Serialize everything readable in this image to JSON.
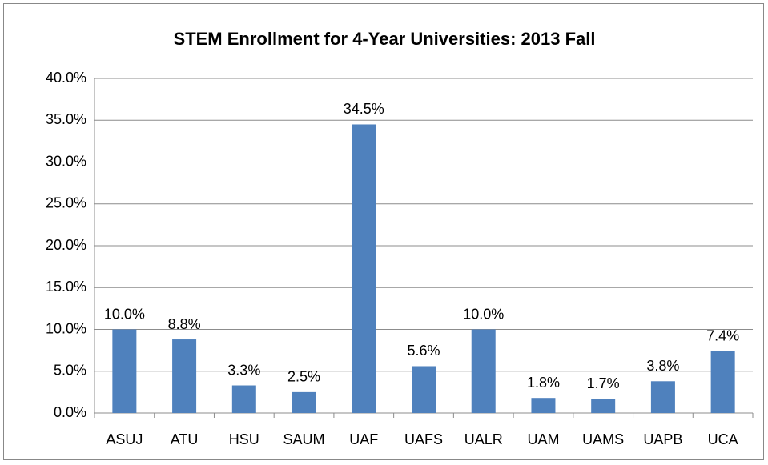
{
  "chart_data": {
    "type": "bar",
    "title": "STEM Enrollment for 4-Year Universities: 2013 Fall",
    "categories": [
      "ASUJ",
      "ATU",
      "HSU",
      "SAUM",
      "UAF",
      "UAFS",
      "UALR",
      "UAM",
      "UAMS",
      "UAPB",
      "UCA"
    ],
    "values": [
      10.0,
      8.8,
      3.3,
      2.5,
      34.5,
      5.6,
      10.0,
      1.8,
      1.7,
      3.8,
      7.4
    ],
    "value_labels": [
      "10.0%",
      "8.8%",
      "3.3%",
      "2.5%",
      "34.5%",
      "5.6%",
      "10.0%",
      "1.8%",
      "1.7%",
      "3.8%",
      "7.4%"
    ],
    "color": "#4f81bd",
    "ylim": [
      0,
      40
    ],
    "yticks": [
      {
        "value": 0,
        "label": "0.0%"
      },
      {
        "value": 5,
        "label": "5.0%"
      },
      {
        "value": 10,
        "label": "10.0%"
      },
      {
        "value": 15,
        "label": "15.0%"
      },
      {
        "value": 20,
        "label": "20.0%"
      },
      {
        "value": 25,
        "label": "25.0%"
      },
      {
        "value": 30,
        "label": "30.0%"
      },
      {
        "value": 35,
        "label": "35.0%"
      },
      {
        "value": 40,
        "label": "40.0%"
      }
    ],
    "grid": true
  }
}
